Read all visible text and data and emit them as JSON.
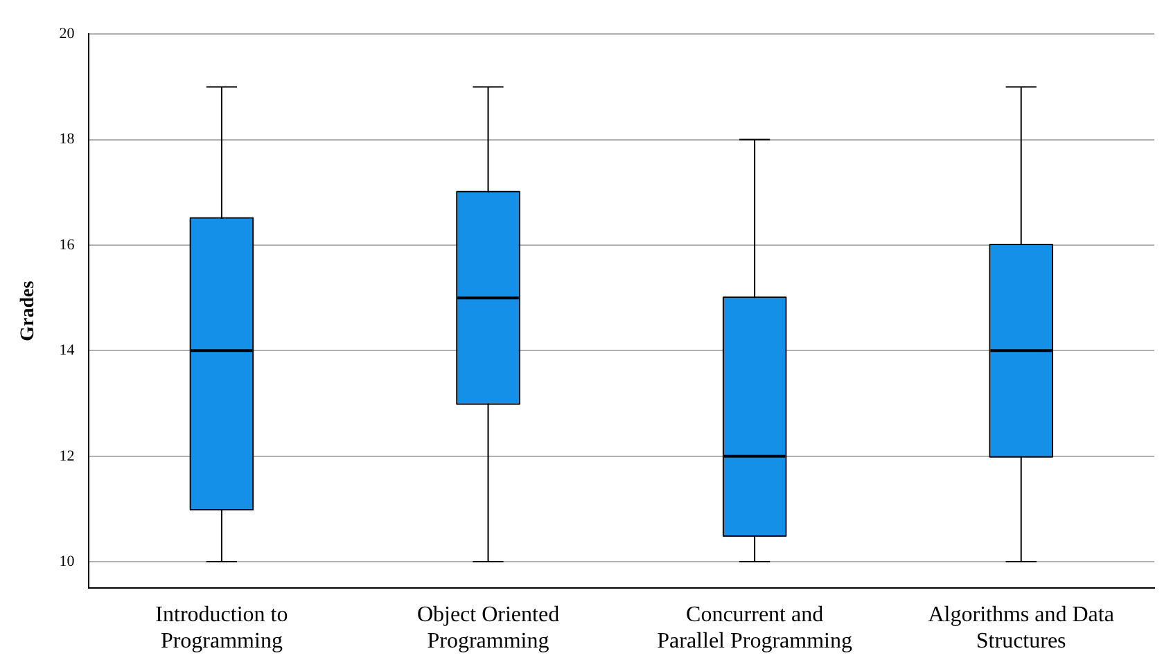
{
  "chart_data": {
    "type": "box",
    "ylabel": "Grades",
    "categories": [
      "Introduction to Programming",
      "Object Oriented Programming",
      "Concurrent and Parallel Programming",
      "Algorithms and Data Structures"
    ],
    "boxes": [
      {
        "low": 10,
        "q1": 11,
        "median": 14,
        "q3": 16.5,
        "high": 19
      },
      {
        "low": 10,
        "q1": 13,
        "median": 15,
        "q3": 17,
        "high": 19
      },
      {
        "low": 10,
        "q1": 10.5,
        "median": 12,
        "q3": 15,
        "high": 18
      },
      {
        "low": 10,
        "q1": 12,
        "median": 14,
        "q3": 16,
        "high": 19
      }
    ],
    "color": "#1490e8",
    "ylim": [
      9.5,
      20
    ],
    "yticks": [
      10,
      12,
      14,
      16,
      18,
      20
    ],
    "grid": "y"
  }
}
